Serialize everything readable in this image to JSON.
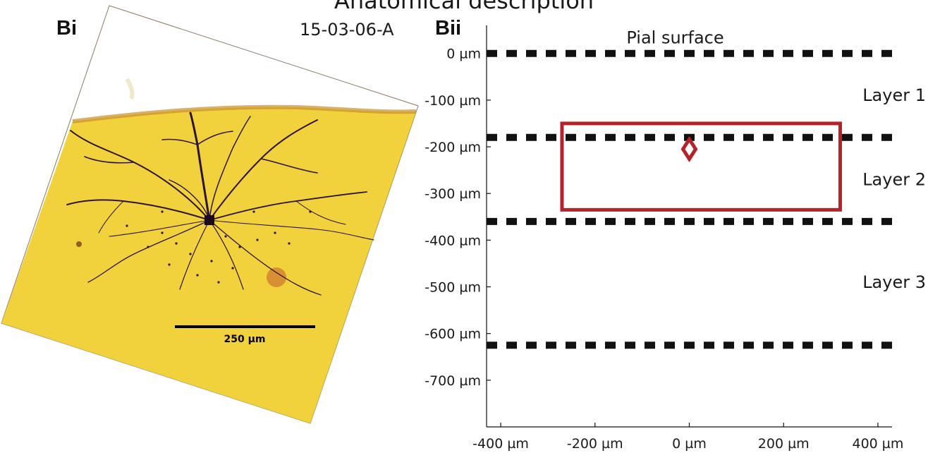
{
  "figure": {
    "title": "Anatomical description"
  },
  "panel_bi": {
    "label": "Bi",
    "specimen_id": "15-03-06-A",
    "scale_bar_label": "250 µm",
    "stain_color": "#f2d23c",
    "neuron_color": "#2a1430"
  },
  "panel_bii": {
    "label": "Bii"
  },
  "chart_data": {
    "type": "scatter",
    "title": "",
    "xlabel": "",
    "ylabel": "",
    "xlim": [
      -430,
      430
    ],
    "ylim": [
      -800,
      60
    ],
    "x_ticks": [
      -400,
      -200,
      0,
      200,
      400
    ],
    "x_tick_labels": [
      "-400 µm",
      "-200 µm",
      "0 µm",
      "200 µm",
      "400 µm"
    ],
    "y_ticks": [
      0,
      -100,
      -200,
      -300,
      -400,
      -500,
      -600,
      -700
    ],
    "y_tick_labels": [
      "0 µm",
      "-100 µm",
      "-200 µm",
      "-300  µm",
      "-400 µm",
      "-500  µm",
      "-600 µm",
      "-700  µm"
    ],
    "boundaries": [
      {
        "y": 0,
        "label": "Pial surface"
      },
      {
        "y": -180
      },
      {
        "y": -360
      },
      {
        "y": -625
      }
    ],
    "layer_labels": [
      {
        "text": "Layer 1",
        "y": -90
      },
      {
        "text": "Layer 2",
        "y": -270
      },
      {
        "text": "Layer 3",
        "y": -490
      }
    ],
    "region_box": {
      "x_range": [
        -270,
        320
      ],
      "y_range": [
        -150,
        -335
      ]
    },
    "soma_point": {
      "x": 0,
      "y": -205
    },
    "accent_color": "#b5232a",
    "line_color": "#111111",
    "grid": false
  }
}
